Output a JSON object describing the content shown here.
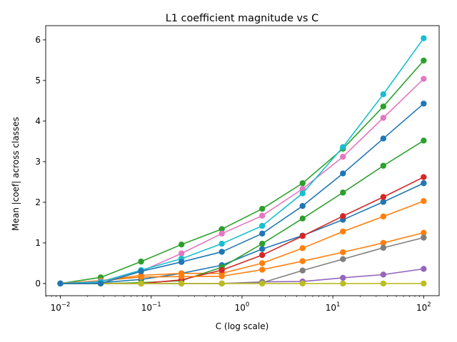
{
  "chart_data": {
    "type": "line",
    "title": "L1 coefficient magnitude vs C",
    "xlabel": "C (log scale)",
    "ylabel": "Mean |coef| across classes",
    "xscale": "log",
    "xlim": [
      0.0069,
      148
    ],
    "ylim": [
      -0.3,
      6.35
    ],
    "grid": false,
    "legend": "none",
    "x": [
      0.01,
      0.0278,
      0.0774,
      0.2154,
      0.5995,
      1.668,
      4.642,
      12.92,
      35.94,
      100
    ],
    "x_ticks": [
      {
        "value": 0.01,
        "base": "10",
        "exp": "−2"
      },
      {
        "value": 0.1,
        "base": "10",
        "exp": "−1"
      },
      {
        "value": 1,
        "base": "10",
        "exp": "0"
      },
      {
        "value": 10,
        "base": "10",
        "exp": "1"
      },
      {
        "value": 100,
        "base": "10",
        "exp": "2"
      }
    ],
    "y_ticks": [
      0,
      1,
      2,
      3,
      4,
      5,
      6
    ],
    "series": [
      {
        "color": "#2ca02c",
        "values": [
          0,
          0.15,
          0.54,
          0.96,
          1.34,
          1.84,
          2.47,
          3.32,
          4.36,
          5.49
        ]
      },
      {
        "color": "#1f77b4",
        "values": [
          0,
          0.02,
          0.1,
          0.25,
          0.45,
          0.85,
          1.18,
          1.57,
          2.01,
          2.47
        ]
      },
      {
        "color": "#ff7f0e",
        "values": [
          0,
          0.07,
          0.2,
          0.25,
          0.25,
          0.5,
          0.87,
          1.28,
          1.65,
          2.03
        ]
      },
      {
        "color": "#2ca02c",
        "values": [
          0,
          0,
          0.02,
          0.07,
          0.4,
          0.98,
          1.6,
          2.24,
          2.9,
          3.52
        ]
      },
      {
        "color": "#d62728",
        "values": [
          0,
          0,
          0,
          0.09,
          0.33,
          0.7,
          1.17,
          1.66,
          2.13,
          2.62
        ]
      },
      {
        "color": "#9467bd",
        "values": [
          0,
          0,
          0,
          0,
          0,
          0.04,
          0.05,
          0.14,
          0.22,
          0.36
        ]
      },
      {
        "color": "#ff7f0e",
        "values": [
          0,
          0.07,
          0.16,
          0.17,
          0.18,
          0.34,
          0.55,
          0.77,
          1.0,
          1.25
        ]
      },
      {
        "color": "#e377c2",
        "values": [
          0,
          0.05,
          0.3,
          0.74,
          1.23,
          1.67,
          2.33,
          3.12,
          4.08,
          5.04
        ]
      },
      {
        "color": "#7f7f7f",
        "values": [
          0,
          0,
          0,
          0,
          0,
          0.02,
          0.32,
          0.6,
          0.88,
          1.13
        ]
      },
      {
        "color": "#bcbd22",
        "values": [
          0,
          0,
          0,
          0,
          0,
          0,
          0,
          0,
          0,
          0
        ]
      },
      {
        "color": "#17becf",
        "values": [
          0,
          0.04,
          0.33,
          0.61,
          0.98,
          1.42,
          2.22,
          3.36,
          4.66,
          6.04
        ]
      },
      {
        "color": "#1f77b4",
        "values": [
          0,
          0,
          0.3,
          0.53,
          0.78,
          1.23,
          1.91,
          2.71,
          3.57,
          4.43
        ]
      }
    ]
  }
}
